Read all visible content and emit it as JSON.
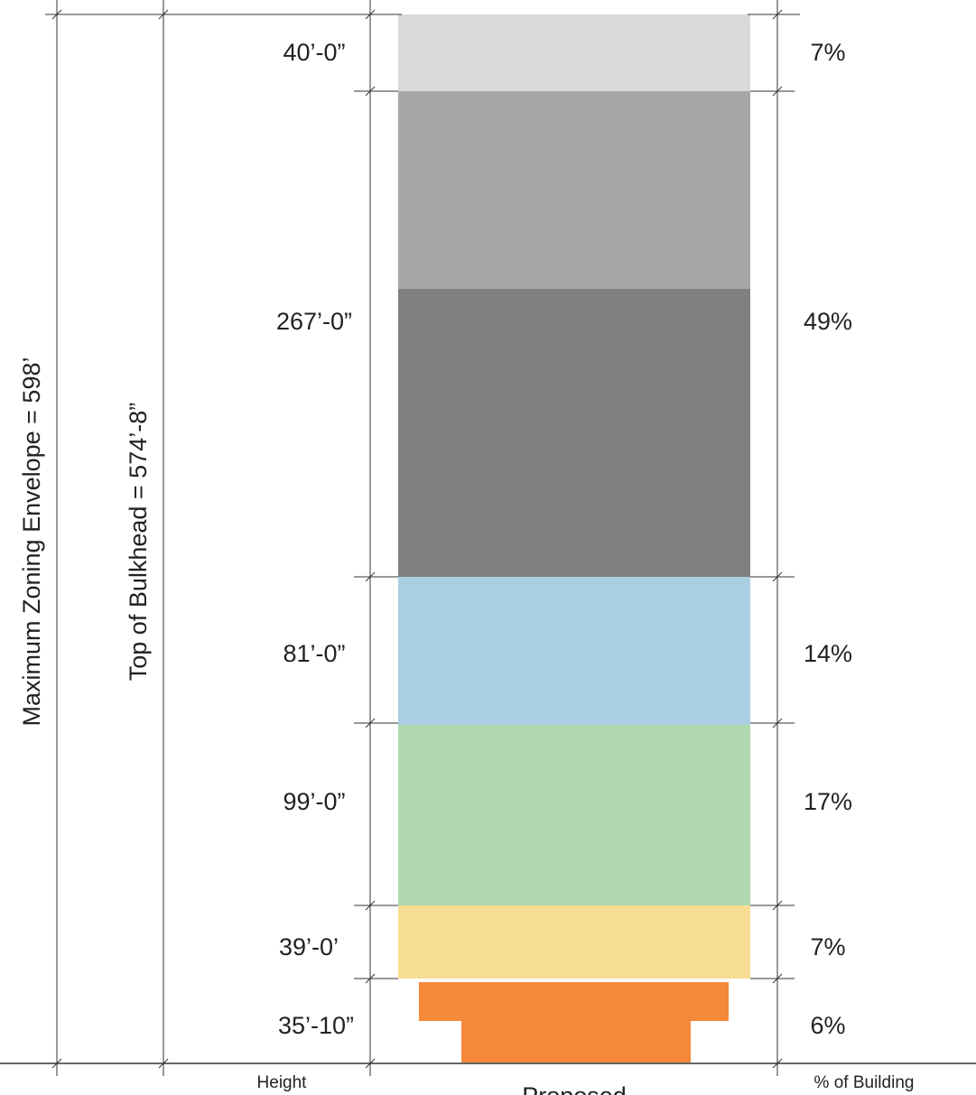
{
  "envelope_label": "Maximum Zoning Envelope = 598’",
  "bulkhead_label": "Top of Bulkhead = 574’-8”",
  "footer": {
    "height_label": "Height",
    "percent_label": "% of Building",
    "center_label": "Proposed"
  },
  "segments": [
    {
      "height": "40’-0”",
      "percent": "7%",
      "color": "#d9d9d9"
    },
    {
      "height": "267’-0”",
      "percent": "49%",
      "color_upper": "#a6a6a6",
      "color_lower": "#808080"
    },
    {
      "height": "81’-0”",
      "percent": "14%",
      "color": "#aacfe3"
    },
    {
      "height": "99’-0”",
      "percent": "17%",
      "color": "#b0d9b0"
    },
    {
      "height": "39’-0’",
      "percent": "7%",
      "color": "#f7dd93"
    },
    {
      "height": "35’-10”",
      "percent": "6%",
      "color": "#f5883a"
    }
  ]
}
